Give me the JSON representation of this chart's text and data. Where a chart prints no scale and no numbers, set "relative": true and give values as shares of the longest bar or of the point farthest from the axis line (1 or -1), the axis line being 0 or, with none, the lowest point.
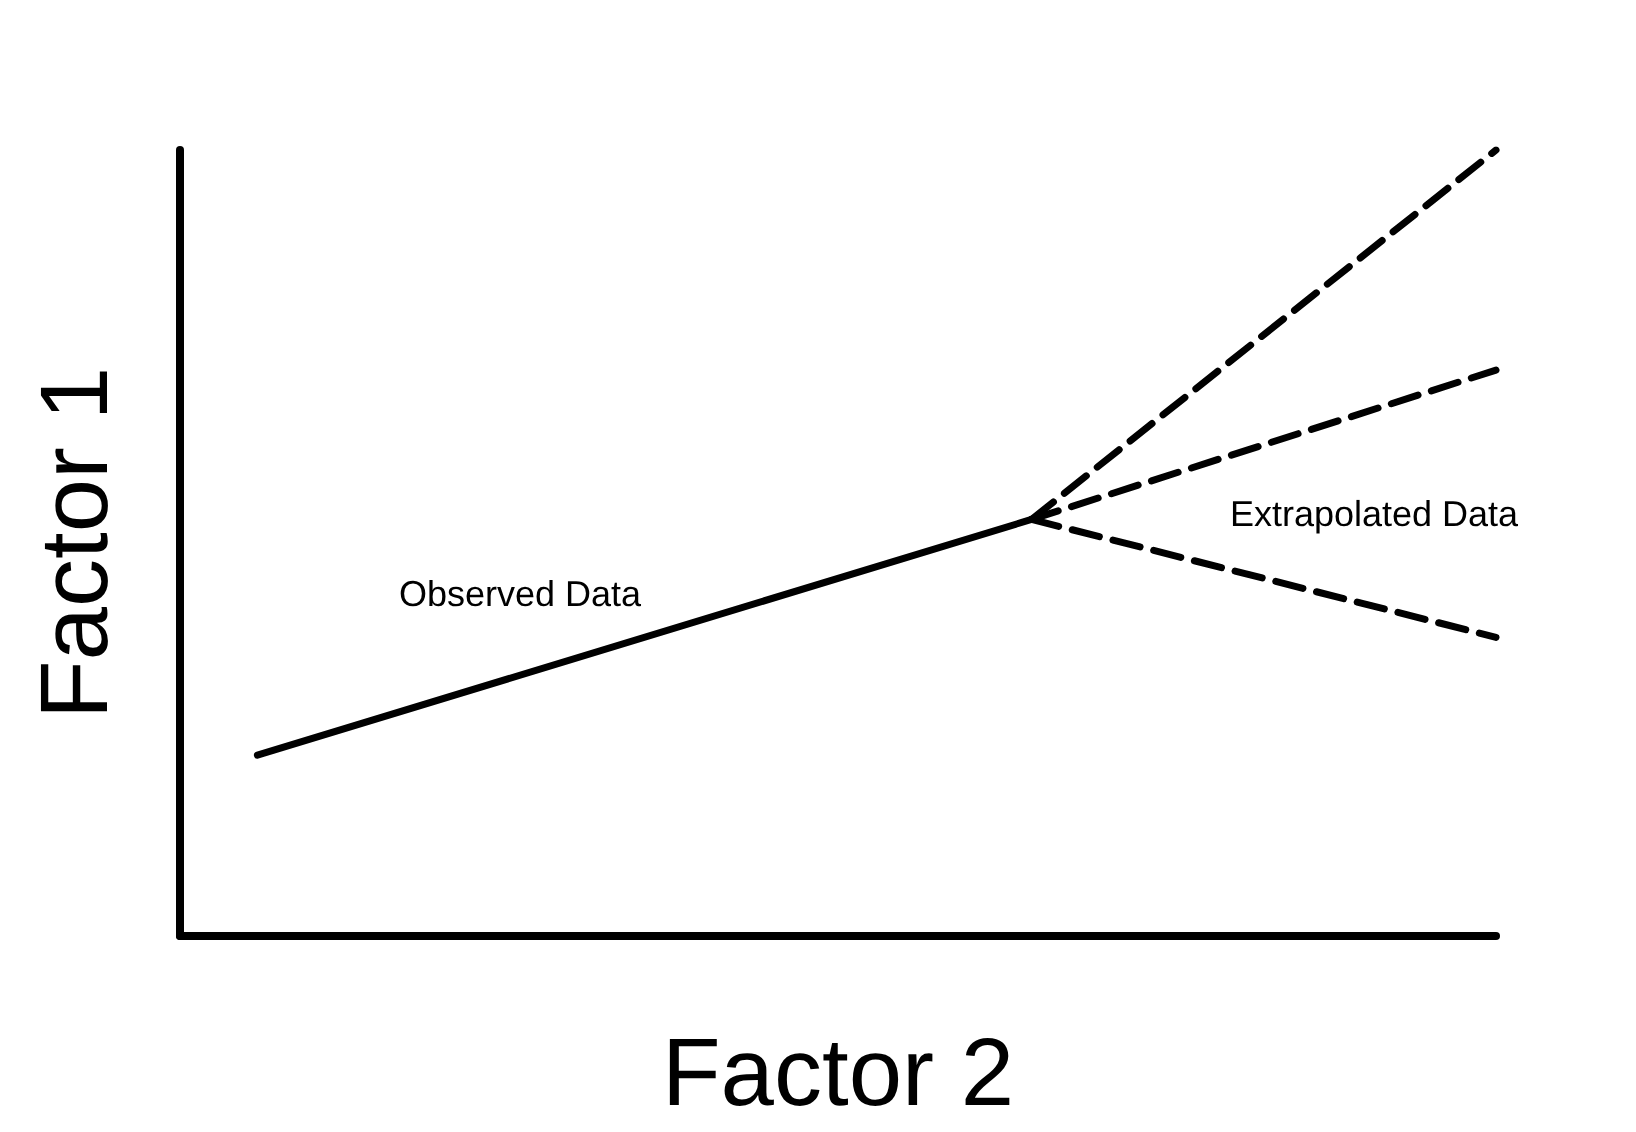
{
  "chart_data": {
    "type": "line",
    "xlabel": "Factor 2",
    "ylabel": "Factor 1",
    "relative": true,
    "grid": false,
    "marker": "none",
    "categories": [
      null,
      null,
      null,
      null,
      null,
      null,
      null,
      null,
      null,
      null,
      null,
      null,
      null,
      null,
      null,
      null,
      null,
      null
    ],
    "series": [
      {
        "values": [
          null,
          0.23,
          null,
          null,
          null,
          null,
          null,
          null,
          null,
          null,
          null,
          0.53,
          null,
          null,
          null,
          null,
          null,
          null
        ],
        "color": "#000000",
        "line_style": "solid"
      },
      {
        "values": [
          null,
          null,
          null,
          null,
          null,
          null,
          null,
          null,
          null,
          null,
          null,
          0.53,
          null,
          null,
          null,
          null,
          null,
          1
        ],
        "color": "#000000",
        "line_style": "dashed"
      },
      {
        "values": [
          null,
          null,
          null,
          null,
          null,
          null,
          null,
          null,
          null,
          null,
          null,
          0.53,
          null,
          null,
          null,
          null,
          null,
          0.72
        ],
        "color": "#000000",
        "line_style": "dashed"
      },
      {
        "values": [
          null,
          null,
          null,
          null,
          null,
          null,
          null,
          null,
          null,
          null,
          null,
          0.53,
          null,
          null,
          null,
          null,
          null,
          0.38
        ],
        "color": "#000000",
        "line_style": "dashed"
      }
    ],
    "annotations": [
      "Observed Data",
      "Extrapolated Data"
    ]
  }
}
